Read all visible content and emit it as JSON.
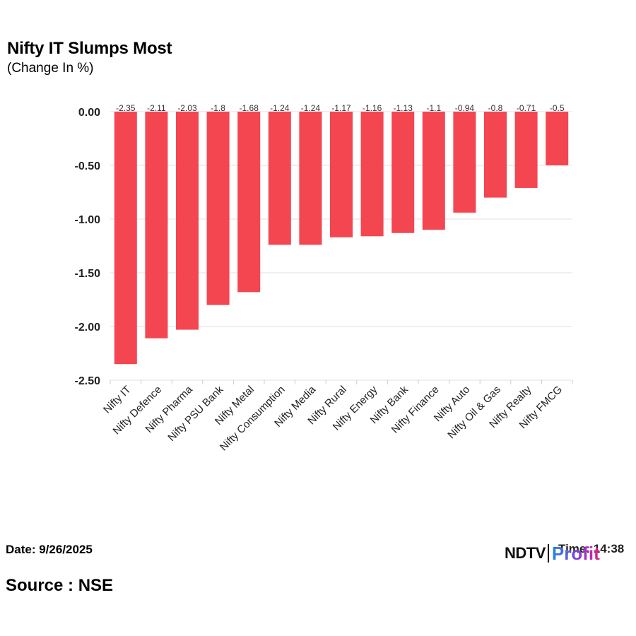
{
  "header": {
    "title": "Nifty IT Slumps Most",
    "subtitle": "(Change In %)"
  },
  "footer": {
    "date": "Date: 9/26/2025",
    "source": "Source : NSE",
    "time": "Time: 14:38"
  },
  "logo": {
    "ndtv": "NDTV",
    "profit": "Profit"
  },
  "colors": {
    "bar": "#f44650",
    "grid": "#e0e0e0",
    "text": "#222222"
  },
  "chart_data": {
    "type": "bar",
    "title": "Nifty IT Slumps Most",
    "subtitle": "(Change In %)",
    "categories": [
      "Nifty IT",
      "Nifty Defence",
      "Nifty Pharma",
      "Nifty PSU Bank",
      "Nifty Metal",
      "Nifty Consumption",
      "Nifty Media",
      "Nifty Rural",
      "Nifty Energy",
      "Nifty Bank",
      "Nifty Finance",
      "Nifty Auto",
      "Nifty Oil & Gas",
      "Nifty Realty",
      "Nifty FMCG"
    ],
    "values": [
      -2.35,
      -2.11,
      -2.03,
      -1.8,
      -1.68,
      -1.24,
      -1.24,
      -1.17,
      -1.16,
      -1.13,
      -1.1,
      -0.94,
      -0.8,
      -0.71,
      -0.5
    ],
    "value_labels": [
      "-2.35",
      "-2.11",
      "-2.03",
      "-1.8",
      "-1.68",
      "-1.24",
      "-1.24",
      "-1.17",
      "-1.16",
      "-1.13",
      "-1.1",
      "-0.94",
      "-0.8",
      "-0.71",
      "-0.5"
    ],
    "yticks": [
      "0.00",
      "-0.50",
      "-1.00",
      "-1.50",
      "-2.00",
      "-2.50"
    ],
    "ytick_values": [
      0,
      -0.5,
      -1.0,
      -1.5,
      -2.0,
      -2.5
    ],
    "ylim": [
      -2.5,
      0
    ],
    "grid": true,
    "legend": "none"
  }
}
